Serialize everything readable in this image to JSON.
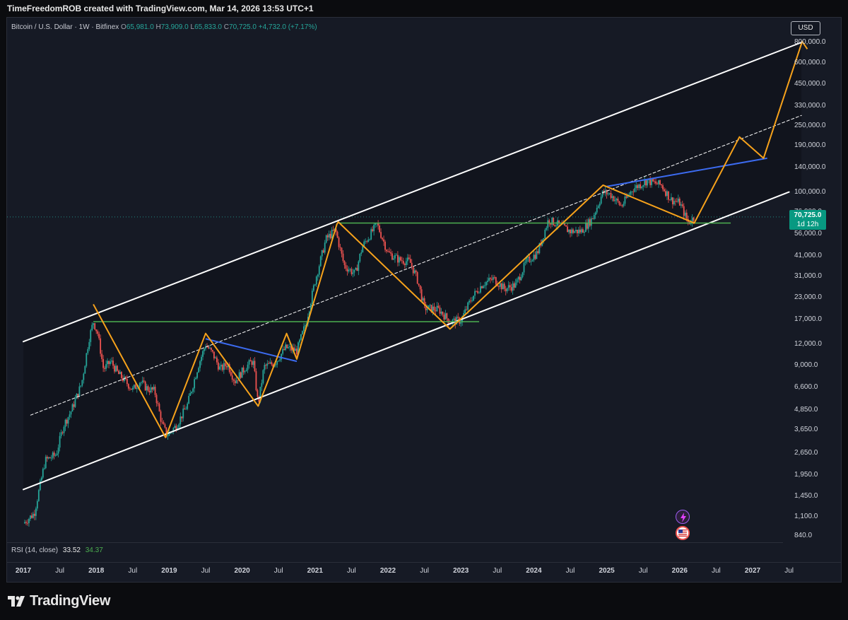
{
  "header": {
    "text": "TimeFreedomROB created with TradingView.com, Mar 14, 2026 13:53 UTC+1"
  },
  "legend": {
    "symbol": "Bitcoin / U.S. Dollar · 1W · Bitfinex",
    "o_key": "O",
    "o_val": "65,981.0",
    "h_key": "H",
    "h_val": "73,909.0",
    "l_key": "L",
    "l_val": "65,833.0",
    "c_key": "C",
    "c_val": "70,725.0",
    "change": "+4,732.0 (+7.17%)"
  },
  "currency_button": "USD",
  "price_badge": {
    "price": "70,725.0",
    "countdown": "1d 12h",
    "color": "#089981"
  },
  "rsi": {
    "label": "RSI (14, close)",
    "value_a": "33.52",
    "value_b": "34.37"
  },
  "brand": {
    "name": "TradingView"
  },
  "colors": {
    "background": "#161a25",
    "channel": "#ffffff",
    "zigzag": "#f7a21b",
    "support": "#4caf50",
    "trendline": "#3c6bf0",
    "candle_up": "#26a69a",
    "candle_down": "#ef5350"
  },
  "chart_data": {
    "type": "candlestick",
    "symbol": "Bitcoin / U.S. Dollar",
    "interval": "1W",
    "exchange": "Bitfinex",
    "y_scale": "log",
    "ylim": [
      840,
      800000
    ],
    "y_ticks": [
      {
        "value": 800000,
        "label": "800,000.0"
      },
      {
        "value": 600000,
        "label": "600,000.0"
      },
      {
        "value": 450000,
        "label": "450,000.0"
      },
      {
        "value": 330000,
        "label": "330,000.0"
      },
      {
        "value": 250000,
        "label": "250,000.0"
      },
      {
        "value": 190000,
        "label": "190,000.0"
      },
      {
        "value": 140000,
        "label": "140,000.0"
      },
      {
        "value": 100000,
        "label": "100,000.0"
      },
      {
        "value": 76000,
        "label": "76,000.0"
      },
      {
        "value": 56000,
        "label": "56,000.0"
      },
      {
        "value": 41000,
        "label": "41,000.0"
      },
      {
        "value": 31000,
        "label": "31,000.0"
      },
      {
        "value": 23000,
        "label": "23,000.0"
      },
      {
        "value": 17000,
        "label": "17,000.0"
      },
      {
        "value": 12000,
        "label": "12,000.0"
      },
      {
        "value": 9000,
        "label": "9,000.0"
      },
      {
        "value": 6600,
        "label": "6,600.0"
      },
      {
        "value": 4850,
        "label": "4,850.0"
      },
      {
        "value": 3650,
        "label": "3,650.0"
      },
      {
        "value": 2650,
        "label": "2,650.0"
      },
      {
        "value": 1950,
        "label": "1,950.0"
      },
      {
        "value": 1450,
        "label": "1,450.0"
      },
      {
        "value": 1100,
        "label": "1,100.0"
      },
      {
        "value": 840,
        "label": "840.0"
      }
    ],
    "x_ticks": [
      {
        "t": 2017.0,
        "label": "2017",
        "year": true
      },
      {
        "t": 2017.5,
        "label": "Jul",
        "year": false
      },
      {
        "t": 2018.0,
        "label": "2018",
        "year": true
      },
      {
        "t": 2018.5,
        "label": "Jul",
        "year": false
      },
      {
        "t": 2019.0,
        "label": "2019",
        "year": true
      },
      {
        "t": 2019.5,
        "label": "Jul",
        "year": false
      },
      {
        "t": 2020.0,
        "label": "2020",
        "year": true
      },
      {
        "t": 2020.5,
        "label": "Jul",
        "year": false
      },
      {
        "t": 2021.0,
        "label": "2021",
        "year": true
      },
      {
        "t": 2021.5,
        "label": "Jul",
        "year": false
      },
      {
        "t": 2022.0,
        "label": "2022",
        "year": true
      },
      {
        "t": 2022.5,
        "label": "Jul",
        "year": false
      },
      {
        "t": 2023.0,
        "label": "2023",
        "year": true
      },
      {
        "t": 2023.5,
        "label": "Jul",
        "year": false
      },
      {
        "t": 2024.0,
        "label": "2024",
        "year": true
      },
      {
        "t": 2024.5,
        "label": "Jul",
        "year": false
      },
      {
        "t": 2025.0,
        "label": "2025",
        "year": true
      },
      {
        "t": 2025.5,
        "label": "Jul",
        "year": false
      },
      {
        "t": 2026.0,
        "label": "2026",
        "year": true
      },
      {
        "t": 2026.5,
        "label": "Jul",
        "year": false
      },
      {
        "t": 2027.0,
        "label": "2027",
        "year": true
      },
      {
        "t": 2027.5,
        "label": "Jul",
        "year": false
      }
    ],
    "price_path": [
      [
        2017.0,
        1000
      ],
      [
        2017.15,
        1150
      ],
      [
        2017.3,
        2400
      ],
      [
        2017.45,
        2600
      ],
      [
        2017.55,
        3900
      ],
      [
        2017.65,
        4700
      ],
      [
        2017.8,
        7000
      ],
      [
        2017.9,
        13000
      ],
      [
        2017.96,
        16500
      ],
      [
        2018.02,
        14000
      ],
      [
        2018.1,
        8500
      ],
      [
        2018.2,
        9500
      ],
      [
        2018.3,
        8000
      ],
      [
        2018.4,
        7200
      ],
      [
        2018.5,
        6400
      ],
      [
        2018.6,
        7200
      ],
      [
        2018.7,
        6500
      ],
      [
        2018.8,
        6300
      ],
      [
        2018.9,
        4000
      ],
      [
        2018.97,
        3400
      ],
      [
        2019.1,
        3900
      ],
      [
        2019.25,
        5200
      ],
      [
        2019.4,
        9000
      ],
      [
        2019.5,
        12000
      ],
      [
        2019.6,
        10500
      ],
      [
        2019.7,
        8500
      ],
      [
        2019.8,
        9200
      ],
      [
        2019.9,
        7200
      ],
      [
        2020.05,
        8800
      ],
      [
        2020.15,
        9600
      ],
      [
        2020.22,
        5200
      ],
      [
        2020.3,
        8800
      ],
      [
        2020.45,
        9300
      ],
      [
        2020.6,
        11500
      ],
      [
        2020.75,
        11000
      ],
      [
        2020.88,
        16500
      ],
      [
        2021.0,
        29000
      ],
      [
        2021.15,
        52000
      ],
      [
        2021.28,
        59000
      ],
      [
        2021.4,
        36000
      ],
      [
        2021.55,
        32000
      ],
      [
        2021.65,
        47000
      ],
      [
        2021.85,
        64000
      ],
      [
        2022.0,
        43000
      ],
      [
        2022.15,
        39000
      ],
      [
        2022.3,
        38000
      ],
      [
        2022.4,
        30000
      ],
      [
        2022.5,
        20000
      ],
      [
        2022.7,
        19500
      ],
      [
        2022.85,
        16500
      ],
      [
        2023.0,
        16800
      ],
      [
        2023.15,
        23000
      ],
      [
        2023.3,
        28000
      ],
      [
        2023.45,
        30000
      ],
      [
        2023.6,
        26000
      ],
      [
        2023.75,
        27500
      ],
      [
        2023.9,
        38000
      ],
      [
        2024.05,
        43000
      ],
      [
        2024.2,
        68000
      ],
      [
        2024.35,
        63000
      ],
      [
        2024.5,
        58000
      ],
      [
        2024.65,
        58000
      ],
      [
        2024.8,
        69000
      ],
      [
        2024.95,
        100000
      ],
      [
        2025.05,
        97000
      ],
      [
        2025.2,
        82000
      ],
      [
        2025.35,
        104000
      ],
      [
        2025.55,
        117000
      ],
      [
        2025.75,
        110000
      ],
      [
        2025.88,
        90000
      ],
      [
        2026.0,
        86000
      ],
      [
        2026.12,
        65000
      ],
      [
        2026.2,
        70725
      ]
    ],
    "channel_lines": [
      {
        "name": "upper",
        "from": [
          2017.0,
          12500
        ],
        "to": [
          2027.67,
          800000
        ],
        "style": "solid"
      },
      {
        "name": "mid",
        "from": [
          2017.1,
          4500
        ],
        "to": [
          2027.67,
          290000
        ],
        "style": "dashed"
      },
      {
        "name": "lower",
        "from": [
          2017.0,
          1600
        ],
        "to": [
          2027.5,
          100000
        ],
        "style": "solid"
      }
    ],
    "support_lines": [
      {
        "from": [
          2017.96,
          16500
        ],
        "to": [
          2023.25,
          16500
        ]
      },
      {
        "from": [
          2021.33,
          65000
        ],
        "to": [
          2026.7,
          65000
        ]
      }
    ],
    "trend_lines": [
      {
        "from": [
          2019.5,
          13000
        ],
        "to": [
          2020.75,
          9500
        ]
      },
      {
        "from": [
          2025.0,
          108000
        ],
        "to": [
          2027.2,
          160000
        ]
      }
    ],
    "zigzag": [
      [
        2017.96,
        21000
      ],
      [
        2018.95,
        3300
      ],
      [
        2019.5,
        14000
      ],
      [
        2020.22,
        5100
      ],
      [
        2020.61,
        14000
      ],
      [
        2020.75,
        9800
      ],
      [
        2021.3,
        64000
      ],
      [
        2021.32,
        66000
      ],
      [
        2021.35,
        64000
      ],
      [
        2022.85,
        14900
      ],
      [
        2024.95,
        110000
      ],
      [
        2026.2,
        65000
      ],
      [
        2026.82,
        215000
      ],
      [
        2027.15,
        160000
      ],
      [
        2027.68,
        810000
      ],
      [
        2027.75,
        730000
      ]
    ],
    "last_price": 70725,
    "rsi": [
      33.52,
      34.37
    ]
  }
}
